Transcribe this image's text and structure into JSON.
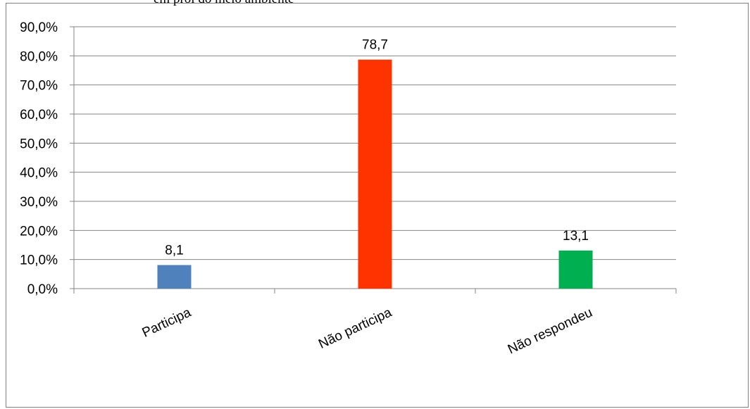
{
  "chart_title_fragment": "em prol do meio ambiente",
  "chart_data": {
    "type": "bar",
    "title": "",
    "xlabel": "",
    "ylabel": "",
    "categories": [
      "Participa",
      "Não participa",
      "Não respondeu"
    ],
    "values": [
      8.1,
      78.7,
      13.1
    ],
    "data_labels": [
      "8,1",
      "78,7",
      "13,1"
    ],
    "colors": [
      "#4f81bd",
      "#ff3300",
      "#00b050"
    ],
    "ylim": [
      0,
      90
    ],
    "yticks": [
      "0,0%",
      "10,0%",
      "20,0%",
      "30,0%",
      "40,0%",
      "50,0%",
      "60,0%",
      "70,0%",
      "80,0%",
      "90,0%"
    ],
    "grid": true
  }
}
